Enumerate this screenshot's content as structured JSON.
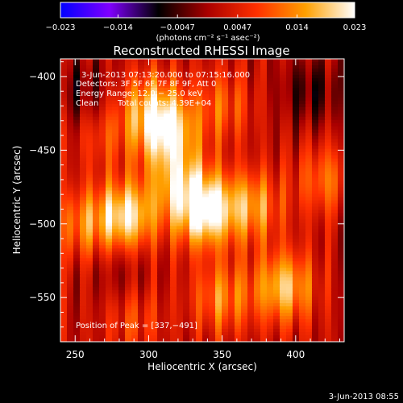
{
  "colorbar": {
    "ticks": [
      -0.023,
      -0.014,
      -0.0047,
      0.0047,
      0.014,
      0.023
    ],
    "tick_labels": [
      "−0.023",
      "−0.014",
      "−0.0047",
      "0.0047",
      "0.014",
      "0.023"
    ],
    "unit_label": "(photons cm⁻² s⁻¹ asec⁻²)",
    "range": [
      -0.023,
      0.023
    ],
    "colors": [
      "#0000ff",
      "#8000ff",
      "#000000",
      "#aa0000",
      "#ff3000",
      "#ffa000",
      "#ffffff"
    ]
  },
  "chart_data": {
    "type": "heatmap",
    "title": "Reconstructed RHESSI Image",
    "xlabel": "Heliocentric X (arcsec)",
    "ylabel": "Heliocentric Y (arcsec)",
    "xlim": [
      240,
      433
    ],
    "ylim": [
      -580,
      -388
    ],
    "x_ticks": [
      250,
      300,
      350,
      400
    ],
    "x_tick_labels": [
      "250",
      "300",
      "350",
      "400"
    ],
    "y_ticks": [
      -400,
      -450,
      -500,
      -550
    ],
    "y_tick_labels": [
      "−400",
      "−450",
      "−500",
      "−550"
    ],
    "annotations": {
      "time_range": "3-Jun-2013 07:13:20.000 to 07:15:16.000",
      "detectors": "Detectors: 3F 5F 6F 7F 8F 9F, Att 0",
      "energy_range": "Energy Range: 12.0 − 25.0 keV",
      "method": "Clean",
      "total_counts": "Total counts: 4.39E+04",
      "peak": "Position of Peak = [337,−491]"
    },
    "sources": [
      {
        "x": 337,
        "y": -491,
        "value": 0.023
      },
      {
        "x": 285,
        "y": -495,
        "value": 0.019
      },
      {
        "x": 312,
        "y": -437,
        "value": 0.018
      },
      {
        "x": 392,
        "y": -543,
        "value": 0.016
      },
      {
        "x": 370,
        "y": -488,
        "value": 0.013
      },
      {
        "x": 300,
        "y": -420,
        "value": 0.011
      },
      {
        "x": 255,
        "y": -500,
        "value": 0.01
      },
      {
        "x": 350,
        "y": -550,
        "value": 0.011
      },
      {
        "x": 350,
        "y": -420,
        "value": 0.008
      },
      {
        "x": 270,
        "y": -440,
        "value": 0.006
      },
      {
        "x": 420,
        "y": -470,
        "value": 0.009
      },
      {
        "x": 290,
        "y": -565,
        "value": 0.006
      },
      {
        "x": 320,
        "y": -470,
        "value": 0.012
      },
      {
        "x": 255,
        "y": -410,
        "value": -0.006
      },
      {
        "x": 410,
        "y": -410,
        "value": -0.007
      },
      {
        "x": 280,
        "y": -530,
        "value": -0.004
      }
    ]
  },
  "footer": {
    "date": "3-Jun-2013 08:55"
  }
}
